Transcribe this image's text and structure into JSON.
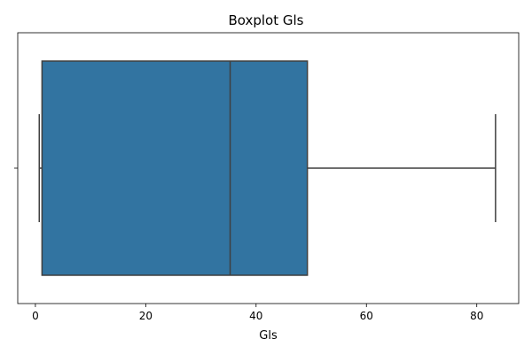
{
  "chart_data": {
    "type": "boxplot",
    "title": "Boxplot Gls",
    "xlabel": "Gls",
    "ylabel": "",
    "orientation": "horizontal",
    "xlim": [
      -3.2,
      87.6
    ],
    "xticks": [
      0,
      20,
      40,
      60,
      80
    ],
    "ytick_labels": [
      ""
    ],
    "grid": false,
    "box": {
      "whisker_low": 0.7,
      "q1": 1.2,
      "median": 35.3,
      "q3": 49.3,
      "whisker_high": 83.4,
      "color": "#3274a1",
      "line_color": "#3f3f3f"
    }
  }
}
